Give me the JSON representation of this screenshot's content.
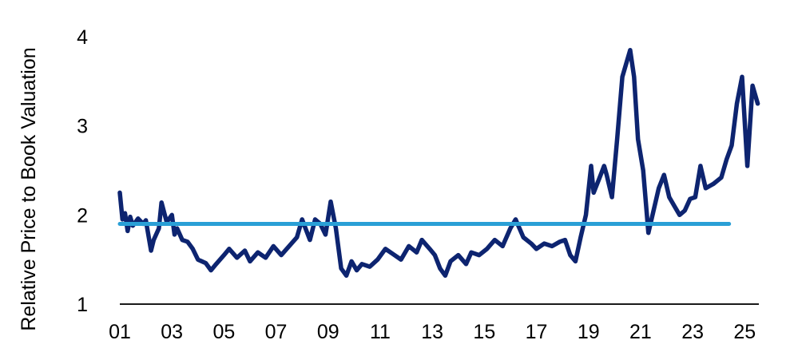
{
  "chart_data": {
    "type": "line",
    "title": "",
    "xlabel": "",
    "ylabel": "Relative Price to Book Valuation",
    "xlim": [
      2001.0,
      2025.5
    ],
    "ylim": [
      1,
      4
    ],
    "y_ticks": [
      1,
      2,
      3,
      4
    ],
    "x_ticks": [
      {
        "value": 2001,
        "label": "01"
      },
      {
        "value": 2003,
        "label": "03"
      },
      {
        "value": 2005,
        "label": "05"
      },
      {
        "value": 2007,
        "label": "07"
      },
      {
        "value": 2009,
        "label": "09"
      },
      {
        "value": 2011,
        "label": "11"
      },
      {
        "value": 2013,
        "label": "13"
      },
      {
        "value": 2015,
        "label": "15"
      },
      {
        "value": 2017,
        "label": "17"
      },
      {
        "value": 2019,
        "label": "19"
      },
      {
        "value": 2021,
        "label": "21"
      },
      {
        "value": 2023,
        "label": "23"
      },
      {
        "value": 2025,
        "label": "25"
      }
    ],
    "grid": false,
    "legend": "none",
    "series": [
      {
        "color": "#0d2470",
        "x": [
          2001.0,
          2001.1,
          2001.2,
          2001.3,
          2001.4,
          2001.5,
          2001.6,
          2001.7,
          2001.9,
          2002.0,
          2002.2,
          2002.3,
          2002.5,
          2002.6,
          2002.8,
          2003.0,
          2003.1,
          2003.2,
          2003.4,
          2003.6,
          2003.8,
          2004.0,
          2004.3,
          2004.5,
          2004.7,
          2005.0,
          2005.2,
          2005.5,
          2005.8,
          2006.0,
          2006.3,
          2006.6,
          2006.9,
          2007.2,
          2007.5,
          2007.8,
          2008.0,
          2008.3,
          2008.5,
          2008.7,
          2008.9,
          2009.1,
          2009.3,
          2009.5,
          2009.7,
          2009.9,
          2010.1,
          2010.3,
          2010.6,
          2010.9,
          2011.2,
          2011.5,
          2011.8,
          2012.1,
          2012.4,
          2012.6,
          2012.9,
          2013.1,
          2013.3,
          2013.5,
          2013.7,
          2014.0,
          2014.3,
          2014.5,
          2014.8,
          2015.1,
          2015.4,
          2015.7,
          2016.0,
          2016.2,
          2016.5,
          2016.8,
          2017.0,
          2017.3,
          2017.6,
          2017.9,
          2018.1,
          2018.3,
          2018.5,
          2018.7,
          2018.9,
          2019.1,
          2019.2,
          2019.4,
          2019.6,
          2019.7,
          2019.9,
          2020.1,
          2020.3,
          2020.45,
          2020.6,
          2020.75,
          2020.9,
          2021.1,
          2021.3,
          2021.5,
          2021.7,
          2021.9,
          2022.1,
          2022.3,
          2022.5,
          2022.7,
          2022.9,
          2023.1,
          2023.3,
          2023.5,
          2023.8,
          2024.1,
          2024.3,
          2024.5,
          2024.7,
          2024.9,
          2025.1,
          2025.3,
          2025.5
        ],
        "values": [
          2.25,
          1.95,
          2.02,
          1.82,
          1.98,
          1.88,
          1.92,
          1.96,
          1.9,
          1.94,
          1.6,
          1.72,
          1.85,
          2.14,
          1.92,
          2.0,
          1.78,
          1.85,
          1.72,
          1.7,
          1.62,
          1.5,
          1.46,
          1.38,
          1.45,
          1.55,
          1.62,
          1.52,
          1.6,
          1.48,
          1.58,
          1.52,
          1.65,
          1.55,
          1.65,
          1.75,
          1.95,
          1.72,
          1.95,
          1.9,
          1.78,
          2.15,
          1.85,
          1.4,
          1.32,
          1.48,
          1.38,
          1.45,
          1.42,
          1.5,
          1.62,
          1.56,
          1.5,
          1.65,
          1.58,
          1.72,
          1.62,
          1.55,
          1.4,
          1.32,
          1.48,
          1.55,
          1.45,
          1.58,
          1.55,
          1.62,
          1.72,
          1.65,
          1.85,
          1.95,
          1.75,
          1.68,
          1.62,
          1.68,
          1.65,
          1.7,
          1.72,
          1.55,
          1.48,
          1.75,
          2.0,
          2.55,
          2.25,
          2.4,
          2.55,
          2.45,
          2.2,
          2.85,
          3.55,
          3.7,
          3.85,
          3.55,
          2.85,
          2.5,
          1.8,
          2.05,
          2.3,
          2.45,
          2.2,
          2.1,
          2.0,
          2.05,
          2.18,
          2.2,
          2.55,
          2.3,
          2.35,
          2.42,
          2.62,
          2.78,
          3.25,
          3.55,
          2.55,
          3.45,
          3.25
        ]
      },
      {
        "color": "#2a9fd6",
        "x": [
          2001.0,
          2024.4
        ],
        "values": [
          1.9,
          1.9
        ]
      }
    ]
  }
}
